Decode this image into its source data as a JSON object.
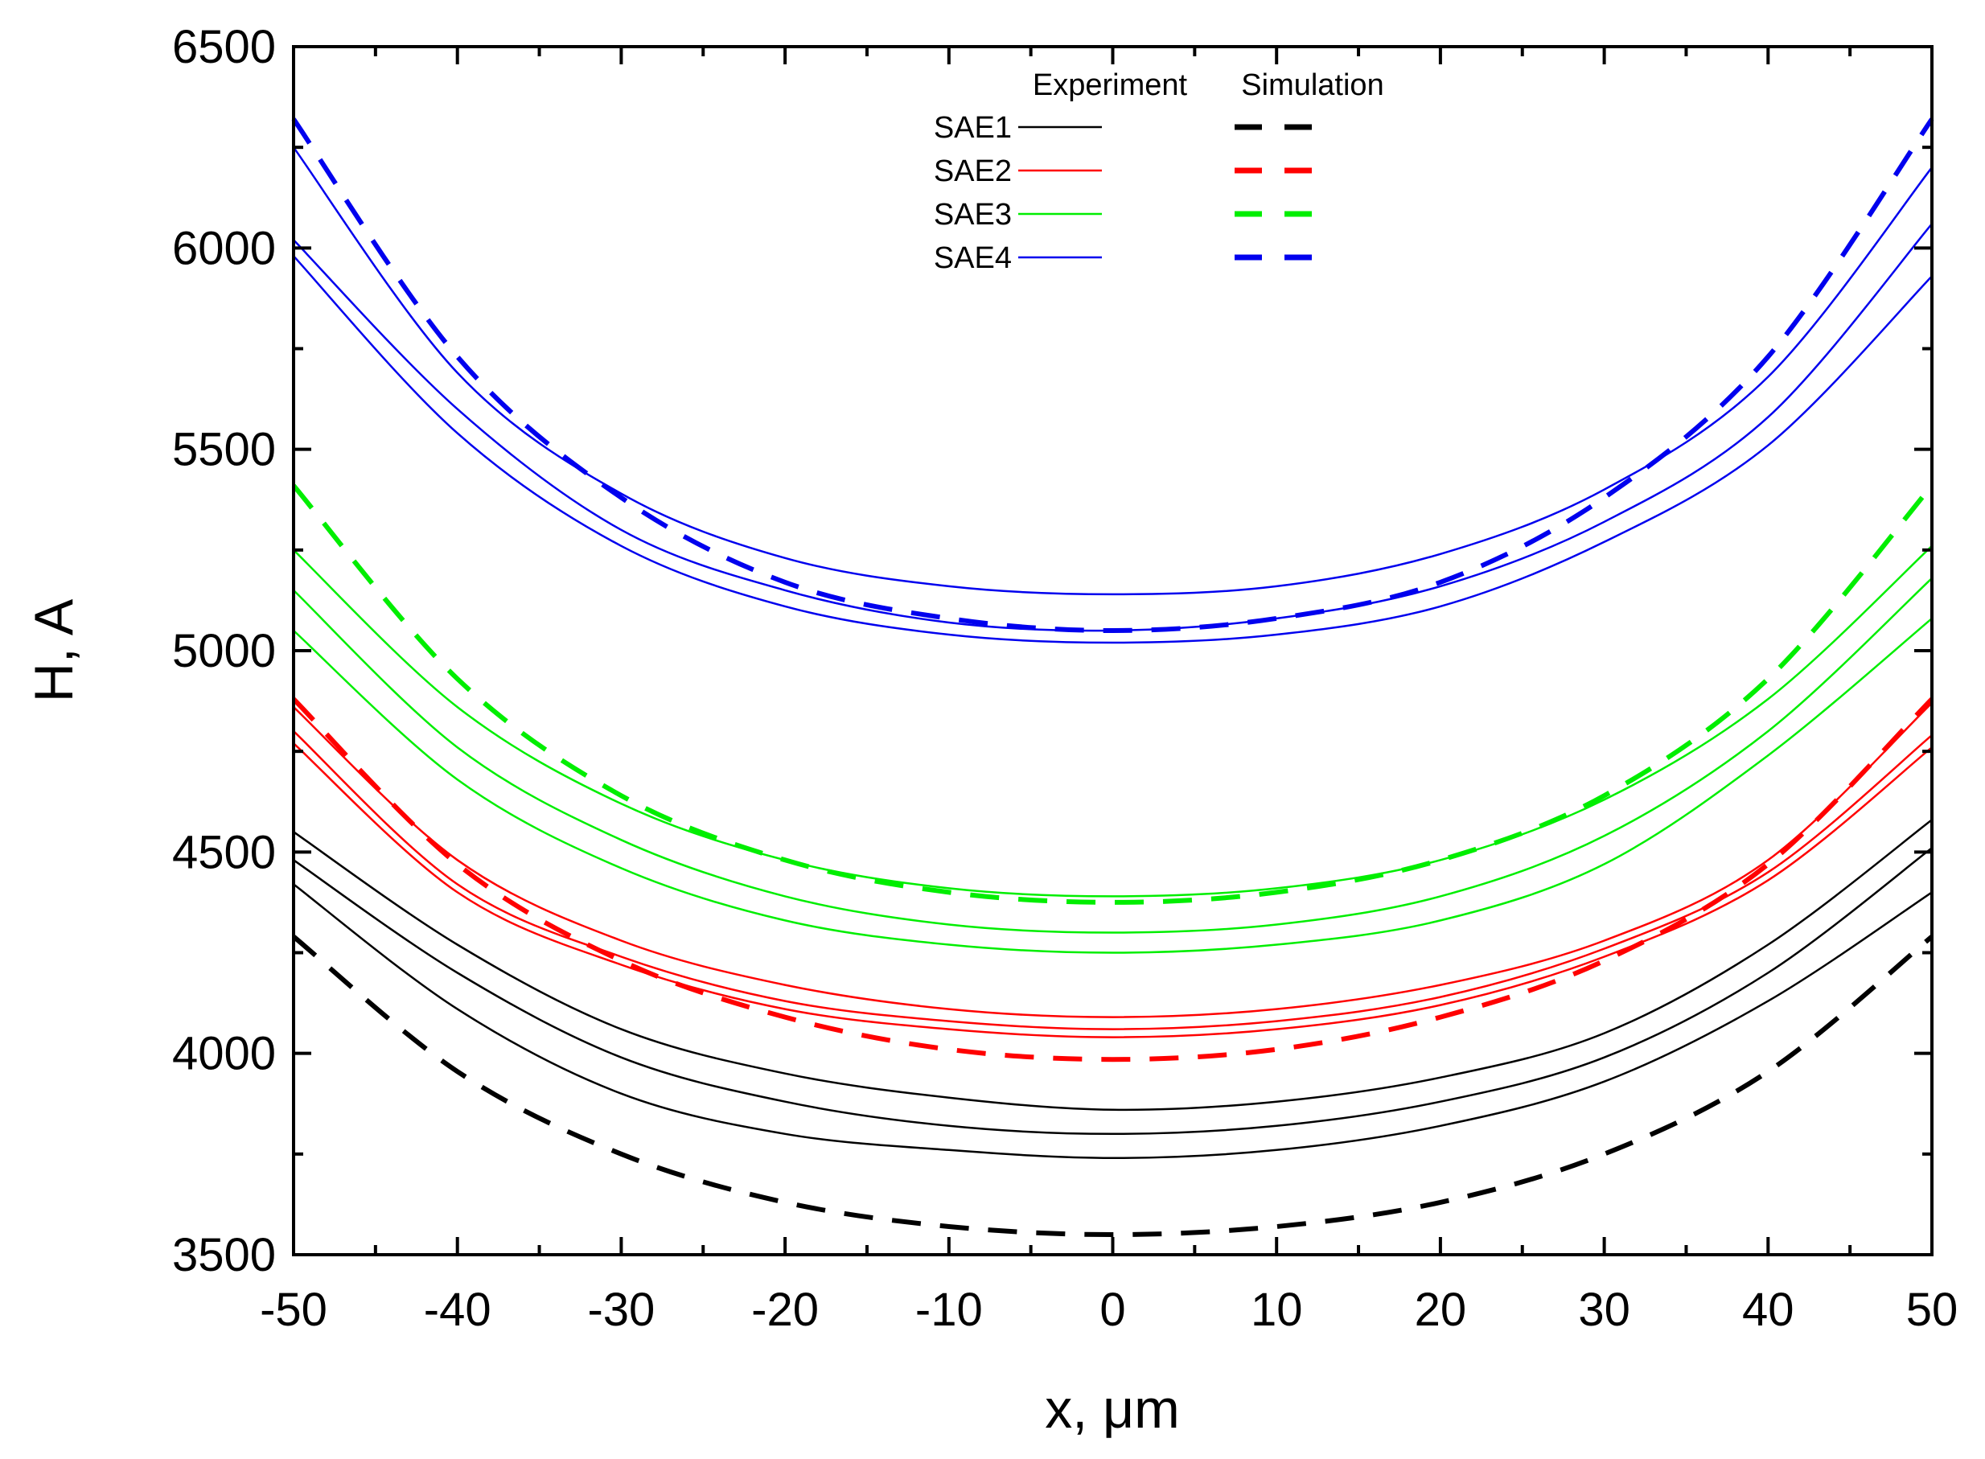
{
  "chart_data": {
    "type": "line",
    "title": "",
    "xlabel": "x, μm",
    "ylabel": "H, A",
    "xlim": [
      -50,
      50
    ],
    "ylim": [
      3500,
      6500
    ],
    "x_ticks": [
      -50,
      -40,
      -30,
      -20,
      -10,
      0,
      10,
      20,
      30,
      40,
      50
    ],
    "y_ticks": [
      3500,
      4000,
      4500,
      5000,
      5500,
      6000,
      6500
    ],
    "grid": false,
    "legend": {
      "placement": "top-center",
      "header_experiment": "Experiment",
      "header_simulation": "Simulation",
      "entries": [
        "SAE1",
        "SAE2",
        "SAE3",
        "SAE4"
      ]
    },
    "colors": {
      "SAE1": "#000000",
      "SAE2": "#ff0000",
      "SAE3": "#00ee00",
      "SAE4": "#0000ee"
    },
    "simulation_series": [
      {
        "name": "SAE1",
        "x": [
          -50,
          -40,
          -30,
          -20,
          -10,
          0,
          10,
          20,
          30,
          40,
          50
        ],
        "values": [
          4290,
          3955,
          3750,
          3630,
          3570,
          3550,
          3570,
          3630,
          3750,
          3955,
          4290
        ]
      },
      {
        "name": "SAE2",
        "x": [
          -50,
          -40,
          -30,
          -20,
          -10,
          0,
          10,
          20,
          30,
          40,
          50
        ],
        "values": [
          4880,
          4470,
          4230,
          4090,
          4010,
          3985,
          4010,
          4090,
          4230,
          4470,
          4880
        ]
      },
      {
        "name": "SAE3",
        "x": [
          -50,
          -40,
          -30,
          -20,
          -10,
          0,
          10,
          20,
          30,
          40,
          50
        ],
        "values": [
          5410,
          4930,
          4640,
          4480,
          4400,
          4375,
          4400,
          4480,
          4640,
          4930,
          5410
        ]
      },
      {
        "name": "SAE4",
        "x": [
          -50,
          -40,
          -30,
          -20,
          -10,
          0,
          10,
          20,
          30,
          40,
          50
        ],
        "values": [
          6320,
          5730,
          5380,
          5170,
          5080,
          5050,
          5080,
          5170,
          5380,
          5730,
          6320
        ]
      }
    ],
    "experiment_series": [
      {
        "name": "SAE1",
        "run": 1,
        "x": [
          -50,
          -40,
          -30,
          -20,
          -10,
          0,
          10,
          20,
          30,
          40,
          50
        ],
        "values": [
          4550,
          4270,
          4060,
          3950,
          3890,
          3860,
          3880,
          3940,
          4050,
          4270,
          4580
        ]
      },
      {
        "name": "SAE1",
        "run": 2,
        "x": [
          -50,
          -40,
          -30,
          -20,
          -10,
          0,
          10,
          20,
          30,
          40,
          50
        ],
        "values": [
          4480,
          4200,
          3990,
          3880,
          3820,
          3800,
          3820,
          3880,
          3990,
          4200,
          4510
        ]
      },
      {
        "name": "SAE1",
        "run": 3,
        "x": [
          -50,
          -40,
          -30,
          -20,
          -10,
          0,
          10,
          20,
          30,
          40,
          50
        ],
        "values": [
          4420,
          4110,
          3900,
          3800,
          3760,
          3740,
          3760,
          3820,
          3930,
          4130,
          4400
        ]
      },
      {
        "name": "SAE2",
        "run": 1,
        "x": [
          -50,
          -40,
          -30,
          -20,
          -10,
          0,
          10,
          20,
          30,
          40,
          50
        ],
        "values": [
          4860,
          4480,
          4280,
          4170,
          4110,
          4090,
          4110,
          4170,
          4280,
          4480,
          4870
        ]
      },
      {
        "name": "SAE2",
        "run": 2,
        "x": [
          -50,
          -40,
          -30,
          -20,
          -10,
          0,
          10,
          20,
          30,
          40,
          50
        ],
        "values": [
          4800,
          4420,
          4240,
          4130,
          4080,
          4060,
          4080,
          4140,
          4260,
          4450,
          4790
        ]
      },
      {
        "name": "SAE2",
        "run": 3,
        "x": [
          -50,
          -40,
          -30,
          -20,
          -10,
          0,
          10,
          20,
          30,
          40,
          50
        ],
        "values": [
          4770,
          4400,
          4220,
          4110,
          4060,
          4040,
          4060,
          4120,
          4240,
          4430,
          4760
        ]
      },
      {
        "name": "SAE3",
        "run": 1,
        "x": [
          -50,
          -40,
          -30,
          -20,
          -10,
          0,
          10,
          20,
          30,
          40,
          50
        ],
        "values": [
          5250,
          4860,
          4620,
          4480,
          4410,
          4390,
          4410,
          4480,
          4630,
          4880,
          5260
        ]
      },
      {
        "name": "SAE3",
        "run": 2,
        "x": [
          -50,
          -40,
          -30,
          -20,
          -10,
          0,
          10,
          20,
          30,
          40,
          50
        ],
        "values": [
          5150,
          4760,
          4530,
          4390,
          4320,
          4300,
          4320,
          4390,
          4540,
          4800,
          5180
        ]
      },
      {
        "name": "SAE3",
        "run": 3,
        "x": [
          -50,
          -40,
          -30,
          -20,
          -10,
          0,
          10,
          20,
          30,
          40,
          50
        ],
        "values": [
          5050,
          4680,
          4460,
          4330,
          4270,
          4250,
          4270,
          4330,
          4470,
          4740,
          5080
        ]
      },
      {
        "name": "SAE4",
        "run": 1,
        "x": [
          -50,
          -40,
          -30,
          -20,
          -10,
          0,
          10,
          20,
          30,
          40,
          50
        ],
        "values": [
          6250,
          5690,
          5390,
          5230,
          5160,
          5140,
          5160,
          5240,
          5400,
          5680,
          6200
        ]
      },
      {
        "name": "SAE4",
        "run": 2,
        "x": [
          -50,
          -40,
          -30,
          -20,
          -10,
          0,
          10,
          20,
          30,
          40,
          50
        ],
        "values": [
          6020,
          5600,
          5300,
          5150,
          5070,
          5050,
          5080,
          5160,
          5320,
          5580,
          6060
        ]
      },
      {
        "name": "SAE4",
        "run": 3,
        "x": [
          -50,
          -40,
          -30,
          -20,
          -10,
          0,
          10,
          20,
          30,
          40,
          50
        ],
        "values": [
          5980,
          5540,
          5260,
          5110,
          5040,
          5020,
          5040,
          5110,
          5270,
          5510,
          5930
        ]
      }
    ]
  }
}
